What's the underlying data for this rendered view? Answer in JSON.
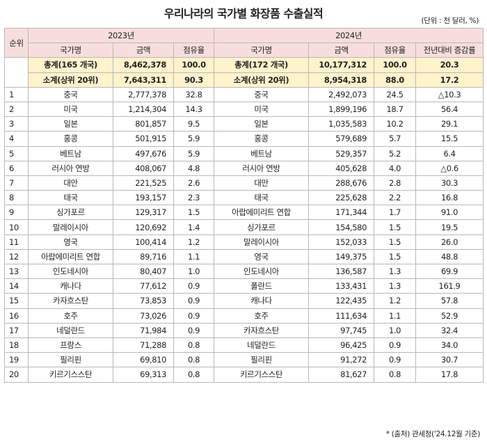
{
  "title": "우리나라의 국가별 화장품 수출실적",
  "unit": "(단위 : 천 달러, %)",
  "headers": {
    "rank": "순위",
    "y2023": "2023년",
    "y2024": "2024년",
    "country": "국가명",
    "amount": "금액",
    "share": "점유율",
    "yoy": "전년대비 증감률"
  },
  "totals": [
    {
      "c23": "총계(165 개국)",
      "a23": "8,462,378",
      "s23": "100.0",
      "c24": "총계(172 개국)",
      "a24": "10,177,312",
      "s24": "100.0",
      "g": "20.3"
    },
    {
      "c23": "소계(상위 20위)",
      "a23": "7,643,311",
      "s23": "90.3",
      "c24": "소계(상위 20위)",
      "a24": "8,954,318",
      "s24": "88.0",
      "g": "17.2"
    }
  ],
  "rows": [
    {
      "r": "1",
      "c23": "중국",
      "a23": "2,777,378",
      "s23": "32.8",
      "c24": "중국",
      "a24": "2,492,073",
      "s24": "24.5",
      "g": "△10.3"
    },
    {
      "r": "2",
      "c23": "미국",
      "a23": "1,214,304",
      "s23": "14.3",
      "c24": "미국",
      "a24": "1,899,196",
      "s24": "18.7",
      "g": "56.4"
    },
    {
      "r": "3",
      "c23": "일본",
      "a23": "801,857",
      "s23": "9.5",
      "c24": "일본",
      "a24": "1,035,583",
      "s24": "10.2",
      "g": "29.1"
    },
    {
      "r": "4",
      "c23": "홍콩",
      "a23": "501,915",
      "s23": "5.9",
      "c24": "홍콩",
      "a24": "579,689",
      "s24": "5.7",
      "g": "15.5"
    },
    {
      "r": "5",
      "c23": "베트남",
      "a23": "497,676",
      "s23": "5.9",
      "c24": "베트남",
      "a24": "529,357",
      "s24": "5.2",
      "g": "6.4"
    },
    {
      "r": "6",
      "c23": "러시아 연방",
      "a23": "408,067",
      "s23": "4.8",
      "c24": "러시아 연방",
      "a24": "405,628",
      "s24": "4.0",
      "g": "△0.6"
    },
    {
      "r": "7",
      "c23": "대만",
      "a23": "221,525",
      "s23": "2.6",
      "c24": "대만",
      "a24": "288,676",
      "s24": "2.8",
      "g": "30.3"
    },
    {
      "r": "8",
      "c23": "태국",
      "a23": "193,157",
      "s23": "2.3",
      "c24": "태국",
      "a24": "225,628",
      "s24": "2.2",
      "g": "16.8"
    },
    {
      "r": "9",
      "c23": "싱가포르",
      "a23": "129,317",
      "s23": "1.5",
      "c24": "아랍에미리트 연합",
      "a24": "171,344",
      "s24": "1.7",
      "g": "91.0"
    },
    {
      "r": "10",
      "c23": "말레이시아",
      "a23": "120,692",
      "s23": "1.4",
      "c24": "싱가포르",
      "a24": "154,580",
      "s24": "1.5",
      "g": "19.5"
    },
    {
      "r": "11",
      "c23": "영국",
      "a23": "100,414",
      "s23": "1.2",
      "c24": "말레이시아",
      "a24": "152,033",
      "s24": "1.5",
      "g": "26.0"
    },
    {
      "r": "12",
      "c23": "아랍에미리트 연합",
      "a23": "89,716",
      "s23": "1.1",
      "c24": "영국",
      "a24": "149,375",
      "s24": "1.5",
      "g": "48.8"
    },
    {
      "r": "13",
      "c23": "인도네시아",
      "a23": "80,407",
      "s23": "1.0",
      "c24": "인도네시아",
      "a24": "136,587",
      "s24": "1.3",
      "g": "69.9"
    },
    {
      "r": "14",
      "c23": "캐나다",
      "a23": "77,612",
      "s23": "0.9",
      "c24": "폴란드",
      "a24": "133,431",
      "s24": "1.3",
      "g": "161.9"
    },
    {
      "r": "15",
      "c23": "카자흐스탄",
      "a23": "73,853",
      "s23": "0.9",
      "c24": "캐나다",
      "a24": "122,435",
      "s24": "1.2",
      "g": "57.8"
    },
    {
      "r": "16",
      "c23": "호주",
      "a23": "73,026",
      "s23": "0.9",
      "c24": "호주",
      "a24": "111,634",
      "s24": "1.1",
      "g": "52.9"
    },
    {
      "r": "17",
      "c23": "네덜란드",
      "a23": "71,984",
      "s23": "0.9",
      "c24": "카자흐스탄",
      "a24": "97,745",
      "s24": "1.0",
      "g": "32.4"
    },
    {
      "r": "18",
      "c23": "프랑스",
      "a23": "71,288",
      "s23": "0.8",
      "c24": "네덜란드",
      "a24": "96,425",
      "s24": "0.9",
      "g": "34.0"
    },
    {
      "r": "19",
      "c23": "필리핀",
      "a23": "69,810",
      "s23": "0.8",
      "c24": "필리핀",
      "a24": "91,272",
      "s24": "0.9",
      "g": "30.7"
    },
    {
      "r": "20",
      "c23": "키르기스스탄",
      "a23": "69,313",
      "s23": "0.8",
      "c24": "키르기스스탄",
      "a24": "81,627",
      "s24": "0.8",
      "g": "17.8"
    }
  ],
  "footnote": "* (출처) 관세청('24.12월 기준)",
  "colors": {
    "header_bg": "#f7dedd",
    "summary_bg": "#fff3cc",
    "border": "#b8b8b8"
  }
}
